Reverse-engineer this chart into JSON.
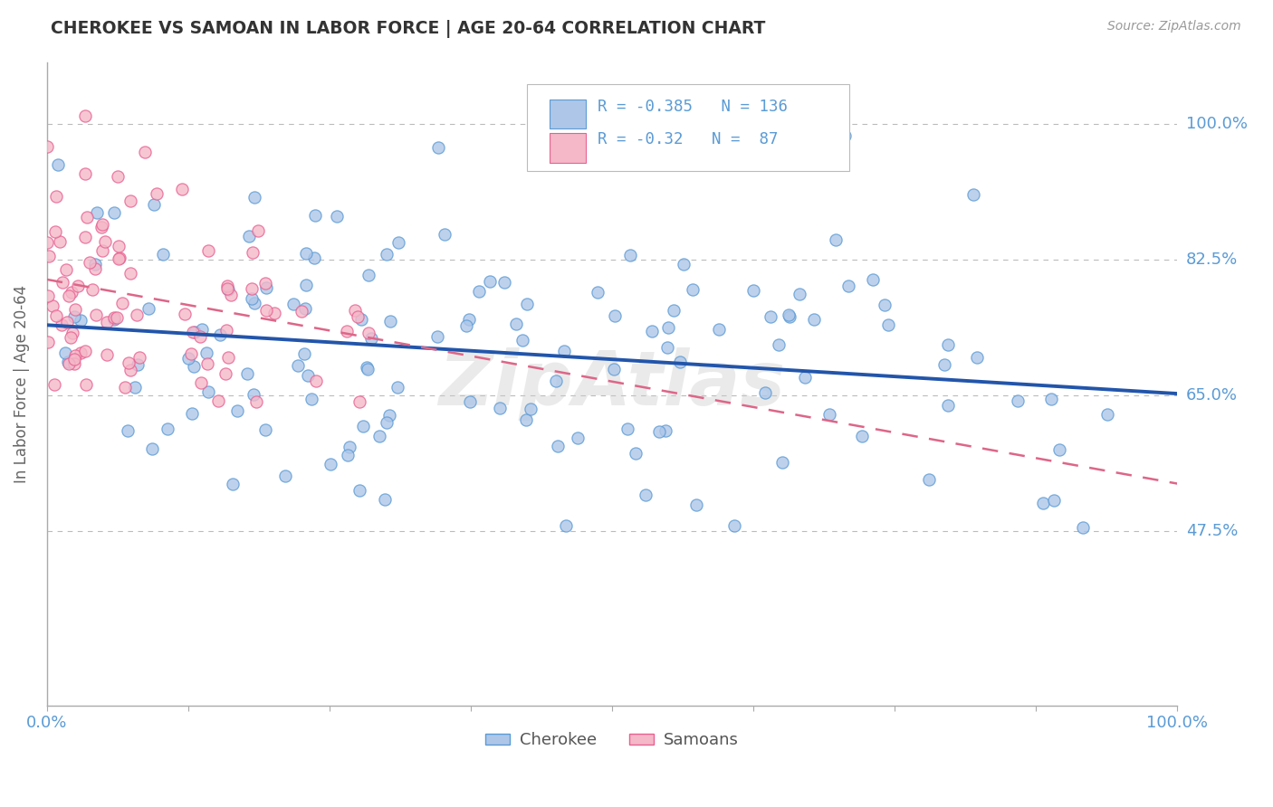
{
  "title": "CHEROKEE VS SAMOAN IN LABOR FORCE | AGE 20-64 CORRELATION CHART",
  "source": "Source: ZipAtlas.com",
  "ylabel": "In Labor Force | Age 20-64",
  "ytick_labels": [
    "100.0%",
    "82.5%",
    "65.0%",
    "47.5%"
  ],
  "ytick_values": [
    1.0,
    0.825,
    0.65,
    0.475
  ],
  "xlim": [
    0.0,
    1.0
  ],
  "ylim": [
    0.25,
    1.08
  ],
  "cherokee_color": "#aec6e8",
  "cherokee_edge": "#5b9bd5",
  "samoan_color": "#f4b8c8",
  "samoan_edge": "#e86090",
  "cherokee_line_color": "#2255aa",
  "samoan_line_color": "#dd6688",
  "cherokee_R": -0.385,
  "cherokee_N": 136,
  "samoan_R": -0.32,
  "samoan_N": 87,
  "legend_label_cherokee": "Cherokee",
  "legend_label_samoan": "Samoans",
  "title_color": "#333333",
  "axis_label_color": "#5b9bd5",
  "grid_color": "#bbbbbb",
  "watermark": "ZipAtlas",
  "background_color": "#ffffff",
  "plot_bg_color": "#ffffff",
  "cherokee_trend_start": 0.735,
  "cherokee_trend_end": 0.615,
  "samoan_trend_start": 0.825,
  "samoan_trend_end": 0.44
}
